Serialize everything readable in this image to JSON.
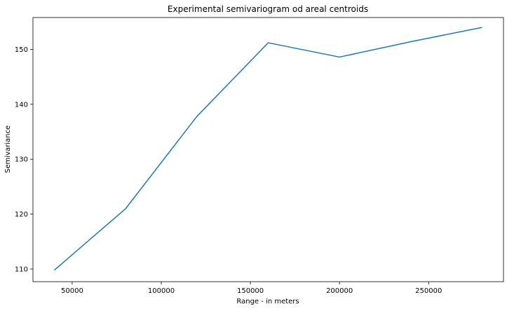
{
  "chart_data": {
    "type": "line",
    "title": "Experimental semivariogram od areal centroids",
    "xlabel": "Range - in meters",
    "ylabel": "Semivariance",
    "xlim": [
      28000,
      292000
    ],
    "ylim": [
      107.7,
      155.8
    ],
    "xticks": [
      50000,
      100000,
      150000,
      200000,
      250000
    ],
    "yticks": [
      110,
      120,
      130,
      140,
      150
    ],
    "grid": false,
    "line_color": "#1f77b4",
    "series": [
      {
        "x": [
          40000,
          80000,
          120000,
          160000,
          200000,
          240000,
          280000
        ],
        "y": [
          109.8,
          121.0,
          137.8,
          151.2,
          148.6,
          151.4,
          154.0
        ]
      }
    ]
  }
}
